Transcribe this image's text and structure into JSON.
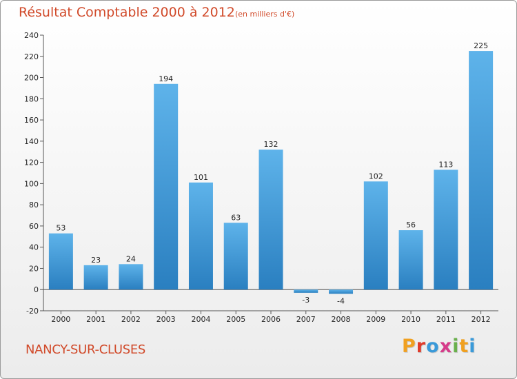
{
  "header": {
    "title": "Résultat Comptable 2000 à 2012",
    "subtitle": "(en milliers d'€)"
  },
  "footer": {
    "commune": "NANCY-SUR-CLUSES",
    "logo_text": "Proxiti",
    "logo_colors": [
      "#f0a020",
      "#e03a2a",
      "#3a9ad9",
      "#d63b8a",
      "#6ab04c",
      "#f0a020",
      "#3a9ad9"
    ]
  },
  "colors": {
    "bar_light": "#5eb3ea",
    "bar_dark": "#2a7fc0",
    "title": "#d14a2a"
  },
  "chart_data": {
    "type": "bar",
    "categories": [
      "2000",
      "2001",
      "2002",
      "2003",
      "2004",
      "2005",
      "2006",
      "2007",
      "2008",
      "2009",
      "2010",
      "2011",
      "2012"
    ],
    "values": [
      53,
      23,
      24,
      194,
      101,
      63,
      132,
      -3,
      -4,
      102,
      56,
      113,
      225
    ],
    "data_labels": [
      "53",
      "23",
      "24",
      "194",
      "101",
      "63",
      "132",
      "-3",
      "-4",
      "102",
      "56",
      "113",
      "225"
    ],
    "ylim": [
      -20,
      240
    ],
    "yticks": [
      -20,
      0,
      20,
      40,
      60,
      80,
      100,
      120,
      140,
      160,
      180,
      200,
      220,
      240
    ],
    "grid": false
  }
}
